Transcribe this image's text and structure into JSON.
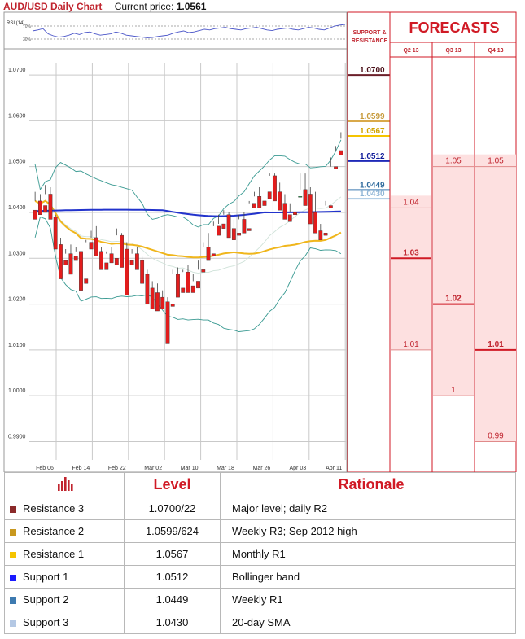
{
  "header": {
    "title": "AUD/USD Daily Chart",
    "price_label": "Current price:",
    "price": "1.0561"
  },
  "panel": {
    "sr_title": "SUPPORT & RESISTANCE",
    "forecast_title": "FORECASTS"
  },
  "rsi": {
    "label": "RSI (14)",
    "ticks": [
      "70%",
      "30%"
    ]
  },
  "chart_data": [
    {
      "type": "line",
      "title": "AUD/USD Daily Chart",
      "x_ticks": [
        "Feb 06",
        "Feb 14",
        "Feb 22",
        "Mar 02",
        "Mar 10",
        "Mar 18",
        "Mar 26",
        "Apr 03",
        "Apr 11"
      ],
      "y_ticks": [
        "1.0700",
        "1.0600",
        "1.0500",
        "1.0400",
        "1.0300",
        "1.0200",
        "1.0100",
        "1.0000",
        "0.9900"
      ],
      "ylim": [
        0.986,
        1.0725
      ],
      "grid": true,
      "candles": [
        [
          1.0405,
          1.0445,
          1.0425,
          1.0385
        ],
        [
          1.0425,
          1.044,
          1.0415,
          1.0395
        ],
        [
          1.0415,
          1.046,
          1.044,
          1.04
        ],
        [
          1.044,
          1.0455,
          1.0395,
          1.0385
        ],
        [
          1.039,
          1.0395,
          1.033,
          1.032
        ],
        [
          1.033,
          1.0345,
          1.0295,
          1.0255
        ],
        [
          1.0295,
          1.032,
          1.031,
          1.0285
        ],
        [
          1.031,
          1.033,
          1.0305,
          1.0265
        ],
        [
          1.0305,
          1.0325,
          1.0315,
          1.0295
        ],
        [
          1.0315,
          1.0345,
          1.0255,
          1.023
        ],
        [
          1.0255,
          1.034,
          1.0335,
          1.0245
        ],
        [
          1.0335,
          1.036,
          1.0345,
          1.032
        ],
        [
          1.0345,
          1.037,
          1.0315,
          1.0305
        ],
        [
          1.0315,
          1.0325,
          1.029,
          1.0275
        ],
        [
          1.029,
          1.0315,
          1.031,
          1.0275
        ],
        [
          1.031,
          1.0325,
          1.03,
          1.029
        ],
        [
          1.03,
          1.0365,
          1.035,
          1.0285
        ],
        [
          1.035,
          1.0355,
          1.032,
          1.028
        ],
        [
          1.032,
          1.0335,
          1.0295,
          1.022
        ],
        [
          1.0295,
          1.032,
          1.031,
          1.0285
        ],
        [
          1.031,
          1.0325,
          1.0295,
          1.0275
        ],
        [
          1.0295,
          1.0305,
          1.0265,
          1.0245
        ],
        [
          1.0265,
          1.0275,
          1.0235,
          1.02
        ],
        [
          1.0235,
          1.025,
          1.0225,
          1.019
        ],
        [
          1.0225,
          1.0245,
          1.0215,
          1.0185
        ],
        [
          1.0215,
          1.023,
          1.0205,
          1.019
        ],
        [
          1.0205,
          1.0215,
          1.02,
          1.0115
        ],
        [
          1.02,
          1.0275,
          1.0265,
          1.0195
        ],
        [
          1.0265,
          1.028,
          1.0235,
          1.0215
        ],
        [
          1.0235,
          1.0275,
          1.027,
          1.0225
        ],
        [
          1.027,
          1.0285,
          1.024,
          1.0225
        ],
        [
          1.024,
          1.0265,
          1.025,
          1.0225
        ],
        [
          1.025,
          1.0295,
          1.0275,
          1.0235
        ],
        [
          1.0275,
          1.0335,
          1.0325,
          1.027
        ],
        [
          1.0325,
          1.0355,
          1.031,
          1.0295
        ],
        [
          1.031,
          1.038,
          1.037,
          1.0305
        ],
        [
          1.037,
          1.0395,
          1.0375,
          1.035
        ],
        [
          1.0375,
          1.0405,
          1.0395,
          1.0365
        ],
        [
          1.0395,
          1.04,
          1.0365,
          1.0345
        ],
        [
          1.0365,
          1.0385,
          1.0355,
          1.034
        ],
        [
          1.0355,
          1.0395,
          1.0385,
          1.035
        ],
        [
          1.0385,
          1.04,
          1.0365,
          1.0355
        ],
        [
          1.0365,
          1.0425,
          1.042,
          1.036
        ],
        [
          1.042,
          1.0445,
          1.0435,
          1.041
        ],
        [
          1.0435,
          1.0455,
          1.0425,
          1.041
        ],
        [
          1.0425,
          1.0445,
          1.0445,
          1.0415
        ],
        [
          1.0445,
          1.0485,
          1.048,
          1.043
        ],
        [
          1.048,
          1.0485,
          1.0445,
          1.0425
        ],
        [
          1.0445,
          1.0465,
          1.042,
          1.0405
        ],
        [
          1.042,
          1.044,
          1.0395,
          1.0385
        ],
        [
          1.0395,
          1.042,
          1.04,
          1.038
        ],
        [
          1.04,
          1.0445,
          1.0435,
          1.0395
        ],
        [
          1.0435,
          1.0485,
          1.045,
          1.0435
        ],
        [
          1.045,
          1.0485,
          1.044,
          1.0415
        ],
        [
          1.044,
          1.0455,
          1.04,
          1.0375
        ],
        [
          1.04,
          1.0445,
          1.036,
          1.0355
        ],
        [
          1.036,
          1.0375,
          1.0355,
          1.034
        ],
        [
          1.0355,
          1.0425,
          1.0415,
          1.035
        ],
        [
          1.0415,
          1.052,
          1.05,
          1.041
        ],
        [
          1.05,
          1.0545,
          1.0535,
          1.0495
        ],
        [
          1.0535,
          1.0575,
          1.0561,
          1.0525
        ]
      ]
    },
    {
      "type": "line",
      "title": "RSI (14)",
      "ylim": [
        0,
        100
      ],
      "values": [
        55,
        58,
        62,
        46,
        40,
        36,
        38,
        42,
        48,
        44,
        50,
        52,
        46,
        42,
        44,
        46,
        52,
        48,
        42,
        40,
        38,
        36,
        34,
        35,
        38,
        40,
        42,
        48,
        52,
        55,
        50,
        52,
        56,
        60,
        58,
        62,
        64,
        66,
        62,
        60,
        58,
        62,
        64,
        66,
        62,
        58,
        56,
        60,
        62,
        64,
        60,
        58,
        62,
        66,
        64,
        60,
        58,
        64,
        70,
        73,
        75
      ]
    }
  ],
  "forecast": {
    "columns": [
      "Q2 13",
      "Q3 13",
      "Q4 13"
    ],
    "values": [
      {
        "col": 0,
        "value": "1.04",
        "level": 1.041,
        "main": false
      },
      {
        "col": 0,
        "value": "1.03",
        "level": 1.03,
        "main": true
      },
      {
        "col": 0,
        "value": "1.01",
        "level": 1.01,
        "main": false
      },
      {
        "col": 1,
        "value": "1.05",
        "level": 1.05,
        "main": false
      },
      {
        "col": 1,
        "value": "1.02",
        "level": 1.02,
        "main": true
      },
      {
        "col": 1,
        "value": "1",
        "level": 1.0,
        "main": false
      },
      {
        "col": 2,
        "value": "1.05",
        "level": 1.05,
        "main": false
      },
      {
        "col": 2,
        "value": "1.01",
        "level": 1.01,
        "main": true
      },
      {
        "col": 2,
        "value": "0.99",
        "level": 0.99,
        "main": false
      }
    ]
  },
  "sr_levels": [
    {
      "label": "1.0700",
      "value": 1.07,
      "color": "#6b1f2a",
      "text_color": "#4a0f18"
    },
    {
      "label": "1.0599",
      "value": 1.0599,
      "color": "#d9a94a",
      "text_color": "#c79a3a"
    },
    {
      "label": "1.0567",
      "value": 1.0567,
      "color": "#f5c400",
      "text_color": "#d1a400"
    },
    {
      "label": "1.0512",
      "value": 1.0512,
      "color": "#1f2ab8",
      "text_color": "#101c9a"
    },
    {
      "label": "1.0449",
      "value": 1.0449,
      "color": "#3d7ab0",
      "text_color": "#2e6a9d"
    },
    {
      "label": "1.0430",
      "value": 1.043,
      "color": "#a9c8e2",
      "text_color": "#8fb5d6"
    }
  ],
  "table": {
    "headers": [
      "Level",
      "Rationale"
    ],
    "rows": [
      {
        "name": "Resistance 3",
        "level": "1.0700/22",
        "rationale": "Major level;  daily R2",
        "color": "#8b2a2a"
      },
      {
        "name": "Resistance 2",
        "level": "1.0599/624",
        "rationale": "Weekly R3; Sep 2012 high",
        "color": "#c8981f"
      },
      {
        "name": "Resistance 1",
        "level": "1.0567",
        "rationale": "Monthly R1",
        "color": "#f5c400"
      },
      {
        "name": "Support 1",
        "level": "1.0512",
        "rationale": "Bollinger band",
        "color": "#1a1aff"
      },
      {
        "name": "Support 2",
        "level": "1.0449",
        "rationale": "Weekly R1",
        "color": "#3d7ab0"
      },
      {
        "name": "Support 3",
        "level": "1.0430",
        "rationale": "20-day SMA",
        "color": "#b4c8e4"
      }
    ]
  }
}
